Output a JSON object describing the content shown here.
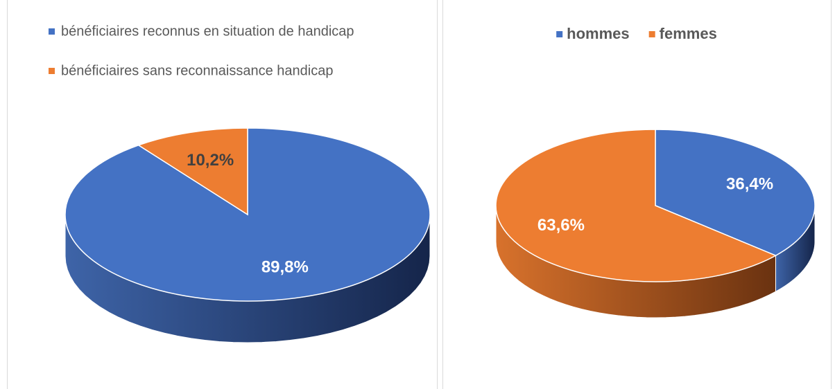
{
  "chart_data": [
    {
      "type": "pie",
      "categories": [
        "bénéficiaires reconnus en situation de handicap",
        "bénéficiaires sans reconnaissance handicap"
      ],
      "values": [
        89.8,
        10.2
      ],
      "value_labels": [
        "89,8%",
        "10,2%"
      ],
      "colors": [
        "#4472c4",
        "#ed7d31"
      ],
      "legend": "top-left"
    },
    {
      "type": "pie",
      "categories": [
        "hommes",
        "femmes"
      ],
      "values": [
        36.4,
        63.6
      ],
      "value_labels": [
        "36,4%",
        "63,6%"
      ],
      "colors": [
        "#4472c4",
        "#ed7d31"
      ],
      "legend": "top"
    }
  ]
}
